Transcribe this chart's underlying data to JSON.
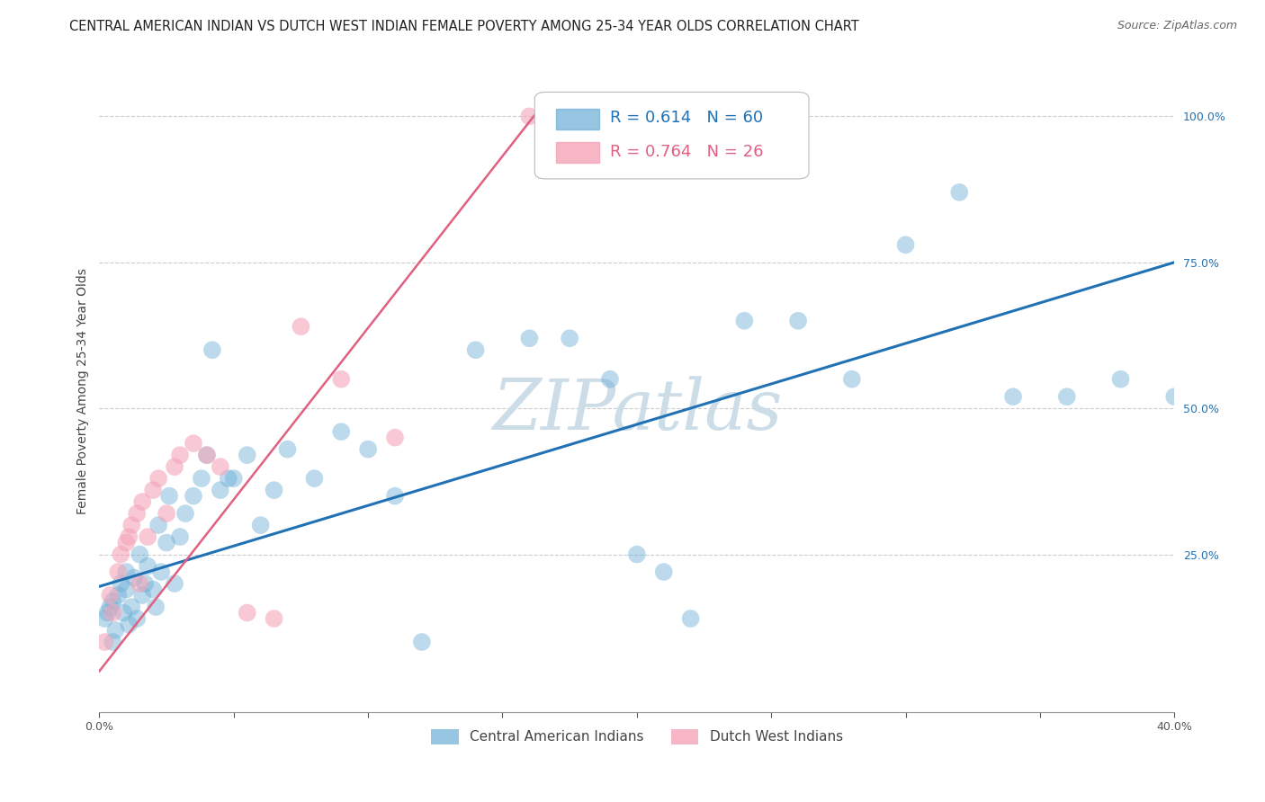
{
  "title": "CENTRAL AMERICAN INDIAN VS DUTCH WEST INDIAN FEMALE POVERTY AMONG 25-34 YEAR OLDS CORRELATION CHART",
  "source": "Source: ZipAtlas.com",
  "ylabel": "Female Poverty Among 25-34 Year Olds",
  "xlim": [
    0.0,
    0.4
  ],
  "ylim": [
    -0.02,
    1.08
  ],
  "xticks": [
    0.0,
    0.05,
    0.1,
    0.15,
    0.2,
    0.25,
    0.3,
    0.35,
    0.4
  ],
  "xticklabels": [
    "0.0%",
    "",
    "",
    "",
    "",
    "",
    "",
    "",
    "40.0%"
  ],
  "yticks": [
    0.0,
    0.25,
    0.5,
    0.75,
    1.0
  ],
  "yticklabels": [
    "",
    "25.0%",
    "50.0%",
    "75.0%",
    "100.0%"
  ],
  "blue_label": "Central American Indians",
  "pink_label": "Dutch West Indians",
  "blue_R": "R = 0.614",
  "blue_N": "N = 60",
  "pink_R": "R = 0.764",
  "pink_N": "N = 26",
  "blue_color": "#6baed6",
  "pink_color": "#f4a4b8",
  "blue_line_color": "#2171b5",
  "pink_line_color": "#e06080",
  "watermark": "ZIPatlas",
  "watermark_color": "#ccdde8",
  "blue_scatter_x": [
    0.002,
    0.003,
    0.004,
    0.005,
    0.005,
    0.006,
    0.007,
    0.008,
    0.009,
    0.01,
    0.01,
    0.011,
    0.012,
    0.013,
    0.014,
    0.015,
    0.016,
    0.017,
    0.018,
    0.02,
    0.021,
    0.022,
    0.023,
    0.025,
    0.026,
    0.028,
    0.03,
    0.032,
    0.035,
    0.038,
    0.04,
    0.042,
    0.045,
    0.048,
    0.05,
    0.055,
    0.06,
    0.065,
    0.07,
    0.08,
    0.09,
    0.1,
    0.11,
    0.12,
    0.14,
    0.16,
    0.175,
    0.19,
    0.2,
    0.21,
    0.22,
    0.24,
    0.26,
    0.28,
    0.3,
    0.32,
    0.34,
    0.36,
    0.38,
    0.4
  ],
  "blue_scatter_y": [
    0.14,
    0.15,
    0.16,
    0.17,
    0.1,
    0.12,
    0.18,
    0.2,
    0.15,
    0.19,
    0.22,
    0.13,
    0.16,
    0.21,
    0.14,
    0.25,
    0.18,
    0.2,
    0.23,
    0.19,
    0.16,
    0.3,
    0.22,
    0.27,
    0.35,
    0.2,
    0.28,
    0.32,
    0.35,
    0.38,
    0.42,
    0.6,
    0.36,
    0.38,
    0.38,
    0.42,
    0.3,
    0.36,
    0.43,
    0.38,
    0.46,
    0.43,
    0.35,
    0.1,
    0.6,
    0.62,
    0.62,
    0.55,
    0.25,
    0.22,
    0.14,
    0.65,
    0.65,
    0.55,
    0.78,
    0.87,
    0.52,
    0.52,
    0.55,
    0.52
  ],
  "pink_scatter_x": [
    0.002,
    0.004,
    0.005,
    0.007,
    0.008,
    0.01,
    0.011,
    0.012,
    0.014,
    0.015,
    0.016,
    0.018,
    0.02,
    0.022,
    0.025,
    0.028,
    0.03,
    0.035,
    0.04,
    0.045,
    0.055,
    0.065,
    0.075,
    0.09,
    0.11,
    0.16
  ],
  "pink_scatter_y": [
    0.1,
    0.18,
    0.15,
    0.22,
    0.25,
    0.27,
    0.28,
    0.3,
    0.32,
    0.2,
    0.34,
    0.28,
    0.36,
    0.38,
    0.32,
    0.4,
    0.42,
    0.44,
    0.42,
    0.4,
    0.15,
    0.14,
    0.64,
    0.55,
    0.45,
    1.0
  ],
  "blue_line_x0": 0.0,
  "blue_line_y0": 0.195,
  "blue_line_x1": 0.4,
  "blue_line_y1": 0.75,
  "pink_line_x0": 0.0,
  "pink_line_y0": 0.05,
  "pink_line_x1": 0.165,
  "pink_line_y1": 1.02,
  "grid_color": "#cccccc",
  "background_color": "#ffffff",
  "title_fontsize": 10.5,
  "axis_label_fontsize": 10,
  "tick_fontsize": 9
}
